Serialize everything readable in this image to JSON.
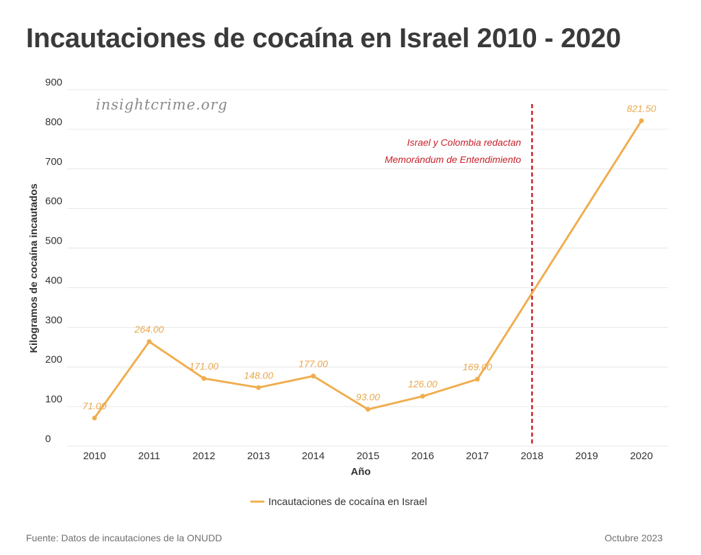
{
  "title": "Incautaciones de cocaína en Israel 2010 - 2020",
  "watermark": "insightcrime.org",
  "footer": {
    "source": "Fuente: Datos de incautaciones de la ONUDD",
    "date": "Octubre 2023"
  },
  "colors": {
    "line": "#f0ad4e",
    "label": "#e8a84b",
    "annotation": "#c8202a",
    "grid": "#e6e6e6"
  },
  "chart_data": {
    "type": "line",
    "title": "Incautaciones de cocaína en Israel 2010 - 2020",
    "xlabel": "Año",
    "ylabel": "Kilogramos de cocaína incautados",
    "x": [
      2010,
      2011,
      2012,
      2013,
      2014,
      2015,
      2016,
      2017,
      2018,
      2019,
      2020
    ],
    "x_ticks": [
      "2010",
      "2011",
      "2012",
      "2013",
      "2014",
      "2015",
      "2016",
      "2017",
      "2018",
      "2019",
      "2020"
    ],
    "y_ticks": [
      "0",
      "100",
      "200",
      "300",
      "400",
      "500",
      "600",
      "700",
      "800",
      "900"
    ],
    "ylim": [
      0,
      900
    ],
    "grid": true,
    "legend_position": "bottom-center",
    "series": [
      {
        "name": "Incautaciones de cocaína en Israel",
        "points": [
          {
            "x": 2010,
            "y": 71.0,
            "label": "71.00"
          },
          {
            "x": 2011,
            "y": 264.0,
            "label": "264.00"
          },
          {
            "x": 2012,
            "y": 171.0,
            "label": "171.00"
          },
          {
            "x": 2013,
            "y": 148.0,
            "label": "148.00"
          },
          {
            "x": 2014,
            "y": 177.0,
            "label": "177.00"
          },
          {
            "x": 2015,
            "y": 93.0,
            "label": "93.00"
          },
          {
            "x": 2016,
            "y": 126.0,
            "label": "126.00"
          },
          {
            "x": 2017,
            "y": 169.0,
            "label": "169.00"
          },
          {
            "x": 2020,
            "y": 821.5,
            "label": "821.50"
          }
        ]
      }
    ],
    "annotation": {
      "x": 2018,
      "lines": [
        "Israel y Colombia redactan",
        "Memorándum de Entendimiento"
      ],
      "style": "dashed-vertical"
    }
  }
}
